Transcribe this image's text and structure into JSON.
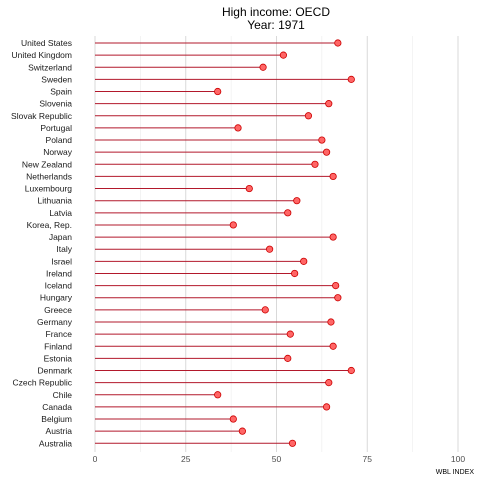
{
  "chart_data": {
    "type": "lollipop",
    "title": "High income: OECD",
    "subtitle": "Year: 1971",
    "xlabel": "WBL INDEX",
    "ylabel": "",
    "xlim": [
      0,
      100
    ],
    "xticks": [
      0,
      25,
      50,
      75,
      100
    ],
    "grid": true,
    "colors": {
      "line": "#b2182b",
      "point_fill": "#ff6666",
      "point_stroke": "#cc0000",
      "grid": "#d9d9d9"
    },
    "categories": [
      "United States",
      "United Kingdom",
      "Switzerland",
      "Sweden",
      "Spain",
      "Slovenia",
      "Slovak Republic",
      "Portugal",
      "Poland",
      "Norway",
      "New Zealand",
      "Netherlands",
      "Luxembourg",
      "Lithuania",
      "Latvia",
      "Korea, Rep.",
      "Japan",
      "Italy",
      "Israel",
      "Ireland",
      "Iceland",
      "Hungary",
      "Greece",
      "Germany",
      "France",
      "Finland",
      "Estonia",
      "Denmark",
      "Czech Republic",
      "Chile",
      "Canada",
      "Belgium",
      "Austria",
      "Australia"
    ],
    "values": [
      66.9,
      51.9,
      46.3,
      70.6,
      33.8,
      64.4,
      58.8,
      39.4,
      62.5,
      63.8,
      60.6,
      65.6,
      42.5,
      55.6,
      53.1,
      38.1,
      65.6,
      48.1,
      57.5,
      55.0,
      66.3,
      66.9,
      46.9,
      65.0,
      53.8,
      65.6,
      53.1,
      70.6,
      64.4,
      33.8,
      63.8,
      38.1,
      40.6,
      54.4
    ]
  }
}
